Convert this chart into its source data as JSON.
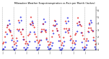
{
  "title": "Milwaukee Weather Evapotranspiration vs Rain per Month (Inches)",
  "title_fontsize": 2.5,
  "background_color": "#ffffff",
  "et_color": "#0000dd",
  "rain_color": "#dd0000",
  "black_color": "#000000",
  "grid_color": "#aaaaaa",
  "ylim": [
    0,
    6.5
  ],
  "ytick_fontsize": 2.4,
  "xtick_fontsize": 2.0,
  "months_per_year": 12,
  "num_years": 8,
  "et_values": [
    0.15,
    0.2,
    0.5,
    1.2,
    2.5,
    3.8,
    4.5,
    4.0,
    3.0,
    1.5,
    0.5,
    0.2,
    0.1,
    0.3,
    0.7,
    1.4,
    3.0,
    4.2,
    5.0,
    4.5,
    3.2,
    1.6,
    0.4,
    0.1,
    0.2,
    0.4,
    0.8,
    1.3,
    2.8,
    3.9,
    4.4,
    4.1,
    2.8,
    1.3,
    0.4,
    0.1,
    0.2,
    0.4,
    0.8,
    1.5,
    2.9,
    4.0,
    4.7,
    4.3,
    3.1,
    1.6,
    0.5,
    0.2,
    0.2,
    0.3,
    0.7,
    1.1,
    2.6,
    3.7,
    4.4,
    4.0,
    3.0,
    1.4,
    0.4,
    0.1,
    0.1,
    0.3,
    0.7,
    1.3,
    2.8,
    4.1,
    4.9,
    4.4,
    3.1,
    1.5,
    0.4,
    0.1,
    0.2,
    0.4,
    0.9,
    1.4,
    2.9,
    3.8,
    4.3,
    3.9,
    2.7,
    1.2,
    0.4,
    0.1,
    0.2,
    0.4,
    0.8,
    1.4,
    2.8,
    3.9,
    4.5,
    4.2,
    3.0,
    1.5,
    0.5,
    0.2
  ],
  "rain_values": [
    1.0,
    1.2,
    2.0,
    2.8,
    3.5,
    3.8,
    3.2,
    3.0,
    2.8,
    2.2,
    1.8,
    1.3,
    0.9,
    1.1,
    1.8,
    3.2,
    4.5,
    3.2,
    2.8,
    2.5,
    3.2,
    2.0,
    1.6,
    1.0,
    1.3,
    1.0,
    2.2,
    2.5,
    4.0,
    5.0,
    4.2,
    3.8,
    3.5,
    2.5,
    2.0,
    1.5,
    1.1,
    1.3,
    1.5,
    2.8,
    3.2,
    4.0,
    3.2,
    3.0,
    2.8,
    1.8,
    1.3,
    0.8,
    0.9,
    1.2,
    2.0,
    3.0,
    3.8,
    4.5,
    3.8,
    3.3,
    3.0,
    2.3,
    2.0,
    1.4,
    0.8,
    1.1,
    1.9,
    3.3,
    4.4,
    3.3,
    3.0,
    2.7,
    3.3,
    2.1,
    1.7,
    1.1,
    1.4,
    1.1,
    2.4,
    2.6,
    4.1,
    4.9,
    4.3,
    3.9,
    3.7,
    2.7,
    2.2,
    1.7,
    0.5,
    1.4,
    1.7,
    2.9,
    3.4,
    4.1,
    3.4,
    3.1,
    2.9,
    1.9,
    1.4,
    0.9
  ],
  "yticks": [
    0,
    1,
    2,
    3,
    4,
    5,
    6
  ],
  "ytick_labels": [
    "0",
    "1",
    "2",
    "3",
    "4",
    "5",
    "6"
  ]
}
